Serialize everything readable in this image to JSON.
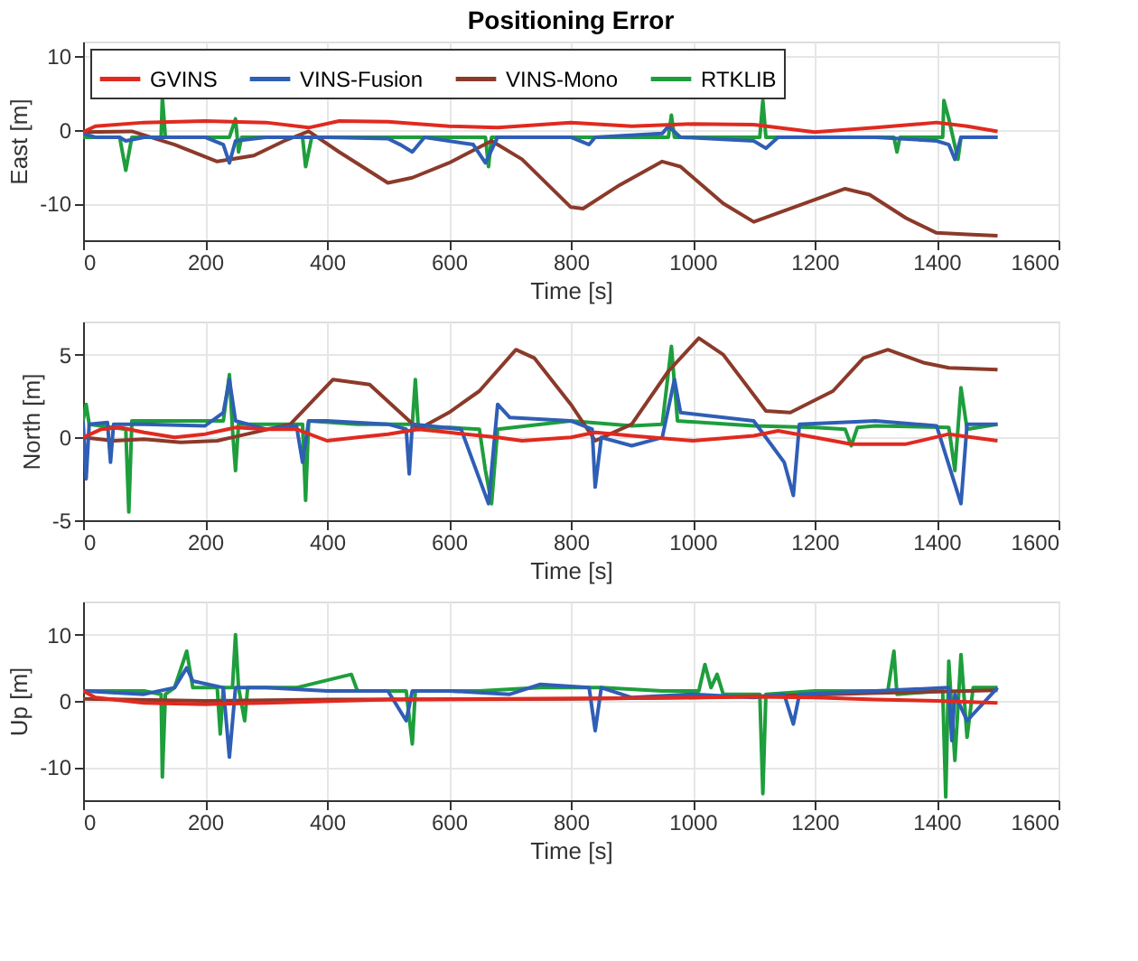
{
  "chart_data": [
    {
      "type": "line",
      "title": "Positioning Error",
      "xlabel": "Time [s]",
      "ylabel": "East [m]",
      "xlim": [
        0,
        1600
      ],
      "xticks": [
        0,
        200,
        400,
        600,
        800,
        1000,
        1200,
        1400,
        1600
      ],
      "ylim": [
        -15,
        12
      ],
      "yticks": [
        -10,
        0,
        10
      ],
      "grid": true,
      "legend": "top left",
      "series": [
        {
          "name": "GVINS",
          "color": "#e02a20",
          "x": [
            0,
            20,
            100,
            200,
            300,
            370,
            420,
            500,
            600,
            680,
            800,
            900,
            1000,
            1100,
            1200,
            1300,
            1400,
            1450,
            1500
          ],
          "values": [
            -0.3,
            0.5,
            1,
            1.2,
            1,
            0.3,
            1.2,
            1.1,
            0.5,
            0.3,
            1,
            0.5,
            0.8,
            0.7,
            -0.3,
            0.3,
            1,
            0.5,
            -0.2
          ]
        },
        {
          "name": "VINS-Fusion",
          "color": "#2f5eb5",
          "x": [
            0,
            20,
            60,
            70,
            100,
            200,
            230,
            240,
            250,
            300,
            360,
            400,
            500,
            520,
            540,
            560,
            640,
            660,
            680,
            800,
            830,
            840,
            950,
            960,
            980,
            1100,
            1120,
            1140,
            1300,
            1400,
            1420,
            1430,
            1440,
            1500
          ],
          "values": [
            -0.5,
            -1,
            -1,
            -1.5,
            -1,
            -1,
            -2,
            -4.5,
            -1.5,
            -1,
            -1,
            -1,
            -1.2,
            -2,
            -3,
            -1,
            -2,
            -4.5,
            -1,
            -1,
            -2,
            -1,
            -0.5,
            0.5,
            -1,
            -1.5,
            -2.5,
            -1,
            -1,
            -1.5,
            -2,
            -4,
            -1,
            -1
          ]
        },
        {
          "name": "VINS-Mono",
          "color": "#8b3a2a",
          "x": [
            0,
            80,
            150,
            220,
            280,
            330,
            370,
            420,
            500,
            540,
            600,
            670,
            720,
            800,
            820,
            880,
            950,
            980,
            1050,
            1100,
            1150,
            1200,
            1250,
            1290,
            1350,
            1400,
            1450,
            1500
          ],
          "values": [
            -0.3,
            -0.2,
            -2,
            -4.3,
            -3.5,
            -1.5,
            -0.2,
            -3,
            -7.2,
            -6.5,
            -4.5,
            -1.5,
            -4,
            -10.5,
            -10.7,
            -7.5,
            -4.3,
            -5,
            -10,
            -12.5,
            -11,
            -9.5,
            -8,
            -8.8,
            -12,
            -14,
            -14.2,
            -14.4
          ]
        },
        {
          "name": "RTKLIB",
          "color": "#1e9e3c",
          "x": [
            0,
            60,
            70,
            80,
            128,
            130,
            135,
            240,
            250,
            255,
            260,
            360,
            365,
            375,
            660,
            665,
            670,
            960,
            965,
            970,
            1110,
            1115,
            1120,
            1330,
            1335,
            1340,
            1410,
            1412,
            1420,
            1435,
            1440,
            1500
          ],
          "values": [
            -1,
            -1,
            -5.5,
            -1,
            -1,
            4.5,
            -1,
            -1,
            1.5,
            -3,
            -1,
            -1,
            -5,
            -1,
            -1,
            -5,
            -1,
            -1,
            2,
            -1,
            -1,
            4,
            -1,
            -1,
            -3,
            -1,
            -1,
            4,
            1.5,
            -4,
            -1,
            -1
          ]
        }
      ]
    },
    {
      "type": "line",
      "xlabel": "Time [s]",
      "ylabel": "North [m]",
      "xlim": [
        0,
        1600
      ],
      "xticks": [
        0,
        200,
        400,
        600,
        800,
        1000,
        1200,
        1400,
        1600
      ],
      "ylim": [
        -5,
        7
      ],
      "yticks": [
        -5,
        0,
        5
      ],
      "grid": true,
      "series": [
        {
          "color": "#e02a20",
          "x": [
            0,
            30,
            60,
            100,
            150,
            200,
            250,
            300,
            350,
            400,
            450,
            500,
            550,
            600,
            680,
            720,
            800,
            840,
            900,
            1000,
            1100,
            1140,
            1200,
            1260,
            1350,
            1420,
            1500
          ],
          "values": [
            0,
            0.5,
            0.6,
            0.3,
            0,
            0.2,
            0.6,
            0.5,
            0.5,
            -0.2,
            0,
            0.2,
            0.5,
            0.3,
            0,
            -0.2,
            0,
            0.3,
            0.1,
            -0.2,
            0.1,
            0.4,
            0,
            -0.4,
            -0.4,
            0.2,
            -0.2
          ]
        },
        {
          "color": "#2f5eb5",
          "x": [
            0,
            5,
            10,
            40,
            45,
            50,
            100,
            200,
            230,
            240,
            250,
            300,
            350,
            360,
            370,
            400,
            500,
            530,
            535,
            540,
            620,
            650,
            665,
            675,
            680,
            700,
            800,
            835,
            840,
            850,
            900,
            950,
            970,
            980,
            1100,
            1130,
            1150,
            1165,
            1175,
            1300,
            1400,
            1440,
            1450,
            1500
          ],
          "values": [
            1,
            -2.5,
            0.8,
            0.9,
            -1.5,
            0.8,
            0.8,
            0.7,
            1.5,
            3.5,
            1,
            0.5,
            0.7,
            -1.5,
            1,
            1,
            0.8,
            0.5,
            -2.2,
            0.8,
            0.5,
            -2.5,
            -4,
            0,
            2,
            1.2,
            1,
            0.5,
            -3,
            0,
            -0.5,
            0,
            3.5,
            1.5,
            1,
            -0.5,
            -1.5,
            -3.5,
            0.8,
            1,
            0.7,
            -4,
            0.8,
            0.8
          ]
        },
        {
          "color": "#8b3a2a",
          "x": [
            0,
            50,
            100,
            160,
            220,
            280,
            340,
            410,
            470,
            550,
            600,
            650,
            710,
            740,
            800,
            840,
            900,
            960,
            1010,
            1050,
            1120,
            1160,
            1230,
            1280,
            1320,
            1380,
            1420,
            1500
          ],
          "values": [
            0,
            -0.2,
            -0.1,
            -0.3,
            -0.2,
            0.3,
            0.8,
            3.5,
            3.2,
            0.5,
            1.5,
            2.8,
            5.3,
            4.8,
            2,
            -0.2,
            0.8,
            4,
            6,
            5,
            1.6,
            1.5,
            2.8,
            4.8,
            5.3,
            4.5,
            4.2,
            4.1
          ]
        },
        {
          "color": "#1e9e3c",
          "x": [
            0,
            5,
            10,
            70,
            75,
            80,
            230,
            240,
            245,
            250,
            255,
            360,
            365,
            370,
            450,
            540,
            545,
            550,
            600,
            650,
            660,
            670,
            680,
            800,
            900,
            950,
            965,
            975,
            1100,
            1200,
            1250,
            1260,
            1270,
            1300,
            1420,
            1430,
            1440,
            1450,
            1500
          ],
          "values": [
            1,
            2,
            0.8,
            0.5,
            -4.5,
            1,
            1,
            3.8,
            0.5,
            -2,
            0.8,
            0.8,
            -3.8,
            1,
            0.8,
            0.8,
            3.5,
            0.5,
            0.6,
            0.5,
            -2,
            -4,
            0.5,
            1,
            0.7,
            0.8,
            5.5,
            1,
            0.7,
            0.6,
            0.5,
            -0.5,
            0.6,
            0.7,
            0.6,
            -2,
            3,
            0.5,
            0.8
          ]
        }
      ]
    },
    {
      "type": "line",
      "xlabel": "Time [s]",
      "ylabel": "Up [m]",
      "xlim": [
        0,
        1600
      ],
      "xticks": [
        0,
        200,
        400,
        600,
        800,
        1000,
        1200,
        1400,
        1600
      ],
      "ylim": [
        -15,
        15
      ],
      "yticks": [
        -10,
        0,
        10
      ],
      "grid": true,
      "series": [
        {
          "color": "#e02a20",
          "x": [
            0,
            20,
            100,
            200,
            300,
            500,
            700,
            900,
            1100,
            1200,
            1300,
            1400,
            1500
          ],
          "values": [
            1.5,
            0.5,
            -0.3,
            -0.5,
            -0.3,
            0.2,
            0.3,
            0.4,
            0.6,
            0.5,
            0.2,
            0,
            -0.3
          ]
        },
        {
          "color": "#2f5eb5",
          "x": [
            0,
            100,
            150,
            170,
            180,
            230,
            240,
            250,
            300,
            400,
            500,
            530,
            540,
            600,
            700,
            750,
            830,
            840,
            850,
            900,
            1000,
            1100,
            1150,
            1165,
            1175,
            1300,
            1420,
            1425,
            1430,
            1450,
            1500
          ],
          "values": [
            1.5,
            1,
            2,
            5,
            3,
            2,
            -8.5,
            2,
            2,
            1.5,
            1.5,
            -3,
            1.5,
            1.5,
            1,
            2.5,
            2,
            -4.5,
            2,
            0.5,
            1,
            0.5,
            1,
            -3.5,
            1,
            1.5,
            2,
            -6,
            1,
            -3,
            2
          ]
        },
        {
          "color": "#8b3a2a",
          "x": [
            0,
            200,
            400,
            800,
            1000,
            1150,
            1300,
            1500
          ],
          "values": [
            0.3,
            0,
            0.2,
            0.3,
            0.5,
            0.8,
            1.2,
            1.6
          ]
        },
        {
          "color": "#1e9e3c",
          "x": [
            0,
            100,
            128,
            130,
            135,
            150,
            170,
            180,
            220,
            225,
            230,
            245,
            250,
            255,
            265,
            270,
            350,
            440,
            450,
            530,
            540,
            545,
            650,
            750,
            850,
            950,
            1010,
            1020,
            1030,
            1040,
            1050,
            1110,
            1115,
            1120,
            1200,
            1320,
            1330,
            1335,
            1410,
            1415,
            1420,
            1430,
            1440,
            1450,
            1460,
            1500
          ],
          "values": [
            1.5,
            1.5,
            1,
            -11.5,
            1,
            2,
            7.5,
            2,
            2,
            -5,
            2,
            2,
            10,
            2,
            -3,
            2,
            2,
            4,
            1.5,
            1.5,
            -6.5,
            1.5,
            1.5,
            2,
            2,
            1.5,
            1.5,
            5.5,
            2,
            4,
            1,
            1,
            -14,
            1,
            1.5,
            1.5,
            7.5,
            1,
            1.5,
            -14.5,
            6,
            -9,
            7,
            -5.5,
            2,
            2
          ]
        }
      ]
    }
  ]
}
